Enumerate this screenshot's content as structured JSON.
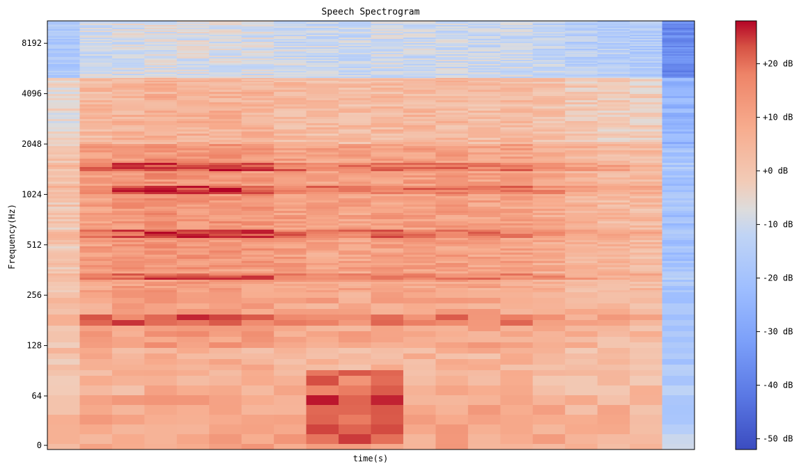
{
  "chart_data": {
    "type": "heatmap",
    "title": "Speech Spectrogram",
    "xlabel": "time(s)",
    "ylabel": "Frequency(Hz)",
    "y_scale": "symlog",
    "y_ticks": [
      0,
      64,
      128,
      256,
      512,
      1024,
      2048,
      4096,
      8192
    ],
    "y_tick_labels": [
      "0",
      "64",
      "128",
      "256",
      "512",
      "1024",
      "2048",
      "4096",
      "8192"
    ],
    "x_ticks": [],
    "colormap": "coolwarm",
    "colorbar": {
      "range": [
        -52,
        28
      ],
      "ticks": [
        -50,
        -40,
        -30,
        -20,
        -10,
        0,
        10,
        20
      ],
      "tick_labels": [
        "-50 dB",
        "-40 dB",
        "-30 dB",
        "-20 dB",
        "-10 dB",
        "+0 dB",
        "+10 dB",
        "+20 dB"
      ]
    },
    "time_frames": 20,
    "grid": false
  }
}
